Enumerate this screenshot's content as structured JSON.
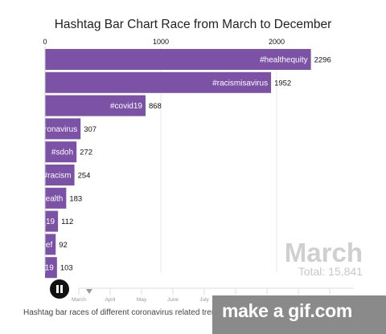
{
  "chart_data": {
    "type": "bar",
    "title": "Hashtag Bar Chart Race from March to December",
    "orientation": "horizontal",
    "x_ticks": [
      0,
      1000,
      2000
    ],
    "xlim": [
      0,
      2500
    ],
    "grid": true,
    "categories": [
      "#healthequity",
      "#racismisavirus",
      "#covid19",
      "oronavirus",
      "#sdoh",
      "#racism",
      "health",
      "_19",
      "ief",
      "-19"
    ],
    "values": [
      2296,
      1952,
      868,
      307,
      272,
      254,
      183,
      112,
      92,
      103
    ],
    "value_labels": [
      "2296",
      "1952",
      "868",
      "307",
      "272",
      "254",
      "183",
      "112",
      "92",
      "103"
    ],
    "bar_color": "#7b52a6",
    "period_label": "March",
    "total_label": "Total: 15,841",
    "timeline_months": [
      "March",
      "April",
      "May",
      "June",
      "July",
      "August",
      "September",
      "October",
      "November"
    ]
  },
  "caption": "Hashtag bar races of different coronavirus related trending h",
  "watermark": "make a gif.com"
}
